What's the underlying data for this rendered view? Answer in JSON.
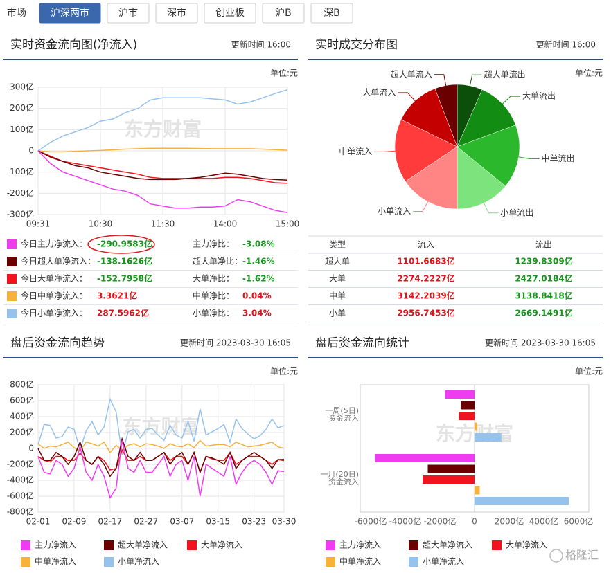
{
  "market": {
    "label": "市场",
    "tabs": [
      "沪深两市",
      "沪市",
      "深市",
      "创业板",
      "沪B",
      "深B"
    ],
    "active": 0,
    "active_color": "#3b67ad"
  },
  "watermark": "东方财富",
  "chart_data": [
    {
      "type": "line",
      "title": "实时资金流向图(净流入)",
      "subtitle": "更新时间 16:00",
      "unit": "单位:元",
      "categories": [
        "09:31",
        null,
        null,
        null,
        null,
        "10:30",
        null,
        null,
        null,
        null,
        "11:30",
        null,
        null,
        null,
        null,
        "14:00",
        null,
        null,
        null,
        null,
        "15:00"
      ],
      "series": [
        {
          "name": "主力净流入",
          "color": "#f03cf0",
          "values": [
            0,
            -60,
            -100,
            -120,
            -140,
            -160,
            -180,
            -190,
            -210,
            -250,
            -260,
            -270,
            -270,
            -265,
            -265,
            -260,
            -230,
            -240,
            -260,
            -280,
            -291
          ]
        },
        {
          "name": "超大单净流入",
          "color": "#6b0000",
          "values": [
            0,
            -30,
            -50,
            -70,
            -80,
            -100,
            -110,
            -120,
            -130,
            -135,
            -135,
            -135,
            -130,
            -125,
            -115,
            -105,
            -110,
            -120,
            -130,
            -135,
            -138
          ]
        },
        {
          "name": "大单净流入",
          "color": "#f0141e",
          "values": [
            0,
            -25,
            -50,
            -60,
            -70,
            -80,
            -90,
            -100,
            -110,
            -125,
            -130,
            -130,
            -130,
            -130,
            -130,
            -125,
            -125,
            -130,
            -140,
            -150,
            -153
          ]
        },
        {
          "name": "中单净流入",
          "color": "#f7b23b",
          "values": [
            0,
            -5,
            -5,
            -2,
            0,
            2,
            5,
            8,
            10,
            12,
            12,
            12,
            12,
            11,
            10,
            10,
            10,
            10,
            8,
            6,
            3
          ]
        },
        {
          "name": "小单净流入",
          "color": "#96c3ec",
          "values": [
            0,
            40,
            70,
            90,
            110,
            140,
            150,
            180,
            200,
            240,
            250,
            250,
            250,
            250,
            245,
            240,
            220,
            230,
            250,
            270,
            288
          ]
        }
      ],
      "ylim": [
        -300,
        300
      ],
      "yticks": [
        {
          "value": 300,
          "label": "300亿"
        },
        {
          "value": 200,
          "label": "200亿"
        },
        {
          "value": 100,
          "label": "100亿"
        },
        0,
        {
          "value": -100,
          "label": "-100亿"
        },
        {
          "value": -200,
          "label": "-200亿"
        },
        {
          "value": -300,
          "label": "-300亿"
        }
      ],
      "grid": true
    },
    {
      "type": "pie",
      "title": "实时成交分布图",
      "subtitle": "更新时间 16:00",
      "unit": "单位:元",
      "categories": [
        "超大单流出",
        "大单流出",
        "中单流出",
        "小单流出",
        "小单流入",
        "中单流入",
        "大单流入",
        "超大单流入"
      ],
      "values": [
        1239.8309,
        2427.0184,
        3138.8418,
        2669.1491,
        2956.7453,
        3142.2039,
        2274.2227,
        1101.6683
      ],
      "colors": [
        "#0b4f0b",
        "#138c13",
        "#2cb82c",
        "#7de47d",
        "#ff8585",
        "#ff3b3b",
        "#c40000",
        "#6b0000"
      ]
    },
    {
      "type": "line",
      "title": "盘后资金流向趋势",
      "subtitle": "更新时间 2023-03-30 16:05",
      "unit": "单位:元",
      "categories": [
        "02-01",
        null,
        null,
        null,
        null,
        null,
        "02-09",
        null,
        null,
        null,
        null,
        null,
        "02-17",
        null,
        null,
        null,
        null,
        null,
        "02-27",
        null,
        null,
        null,
        null,
        null,
        "03-07",
        null,
        null,
        null,
        null,
        null,
        "03-15",
        null,
        null,
        null,
        null,
        null,
        "03-23",
        null,
        null,
        null,
        null,
        "03-30"
      ],
      "series": [
        {
          "name": "主力净流入",
          "color": "#f03cf0",
          "values": [
            -100,
            -300,
            -320,
            -150,
            -200,
            -350,
            -250,
            20,
            -300,
            -400,
            -200,
            -350,
            -620,
            -500,
            100,
            -250,
            -300,
            -150,
            -300,
            -300,
            -200,
            -100,
            -350,
            -200,
            -150,
            -400,
            -100,
            -600,
            -200,
            -250,
            -300,
            -350,
            -100,
            -450,
            -300,
            -200,
            -150,
            -200,
            -300,
            -450,
            -280,
            -291
          ]
        },
        {
          "name": "超大单净流入",
          "color": "#6b0000",
          "values": [
            0,
            -150,
            -150,
            -50,
            -100,
            -200,
            -100,
            80,
            -150,
            -200,
            -100,
            -200,
            -350,
            -250,
            120,
            -100,
            -150,
            -50,
            -150,
            -150,
            -100,
            -50,
            -200,
            -100,
            -50,
            -200,
            -50,
            -300,
            -100,
            -120,
            -150,
            -200,
            -50,
            -250,
            -150,
            -100,
            -50,
            -100,
            -150,
            -250,
            -140,
            -138
          ]
        },
        {
          "name": "大单净流入",
          "color": "#f0141e",
          "values": [
            -100,
            -150,
            -170,
            -100,
            -100,
            -150,
            -150,
            -60,
            -150,
            -200,
            -100,
            -150,
            -270,
            -250,
            -20,
            -150,
            -150,
            -100,
            -150,
            -150,
            -100,
            -50,
            -150,
            -100,
            -100,
            -200,
            -50,
            -300,
            -100,
            -130,
            -150,
            -150,
            -50,
            -200,
            -150,
            -100,
            -100,
            -100,
            -150,
            -200,
            -140,
            -153
          ]
        },
        {
          "name": "中单净流入",
          "color": "#f7b23b",
          "values": [
            60,
            0,
            30,
            20,
            50,
            80,
            10,
            -30,
            80,
            60,
            30,
            80,
            -50,
            40,
            -20,
            40,
            60,
            20,
            60,
            50,
            30,
            0,
            60,
            30,
            20,
            60,
            10,
            100,
            30,
            40,
            50,
            50,
            20,
            80,
            50,
            20,
            30,
            40,
            60,
            80,
            20,
            3
          ]
        },
        {
          "name": "小单净流入",
          "color": "#96c3ec",
          "values": [
            50,
            300,
            290,
            130,
            150,
            270,
            240,
            -20,
            220,
            340,
            170,
            270,
            620,
            460,
            -80,
            210,
            240,
            130,
            240,
            250,
            170,
            100,
            290,
            170,
            130,
            340,
            90,
            500,
            170,
            210,
            250,
            300,
            80,
            370,
            250,
            180,
            120,
            160,
            240,
            370,
            260,
            288
          ]
        }
      ],
      "ylim": [
        -800,
        800
      ],
      "yticks": [
        {
          "value": 800,
          "label": "800亿"
        },
        {
          "value": 600,
          "label": "600亿"
        },
        {
          "value": 400,
          "label": "400亿"
        },
        {
          "value": 200,
          "label": "200亿"
        },
        0,
        {
          "value": -200,
          "label": "-200亿"
        },
        {
          "value": -400,
          "label": "-400亿"
        },
        {
          "value": -600,
          "label": "-600亿"
        },
        {
          "value": -800,
          "label": "-800亿"
        }
      ],
      "grid": true
    },
    {
      "type": "hbar",
      "title": "盘后资金流向统计",
      "subtitle": "更新时间 2023-03-30 16:05",
      "unit": "单位:元",
      "categories": [
        [
          "一周(5日)",
          "资金流入"
        ],
        [
          "一月(20日)",
          "资金流入"
        ]
      ],
      "series": [
        {
          "name": "主力净流入",
          "color": "#f03cf0",
          "values": [
            -1700,
            -5750
          ]
        },
        {
          "name": "超大单净流入",
          "color": "#6b0000",
          "values": [
            -800,
            -2700
          ]
        },
        {
          "name": "大单净流入",
          "color": "#f0141e",
          "values": [
            -900,
            -3000
          ]
        },
        {
          "name": "中单净流入",
          "color": "#f7b23b",
          "values": [
            150,
            300
          ]
        },
        {
          "name": "小单净流入",
          "color": "#96c3ec",
          "values": [
            1550,
            5450
          ]
        }
      ],
      "xlim": [
        -6600,
        6600
      ],
      "xticks": [
        {
          "value": -6000,
          "label": "-6000亿"
        },
        {
          "value": -4000,
          "label": "-4000亿"
        },
        {
          "value": -2000,
          "label": "-2000亿"
        },
        0,
        {
          "value": 2000,
          "label": "2000亿"
        },
        {
          "value": 4000,
          "label": "4000亿"
        },
        {
          "value": 6000,
          "label": "6000亿"
        }
      ]
    }
  ],
  "summary": [
    {
      "label": "今日主力净流入：",
      "value": "-290.9583亿",
      "value_color": "#16961c",
      "ratio_label": "主力净比：",
      "ratio": "-3.08%"
    },
    {
      "label": "今日超大单净流入：",
      "value": "-138.1626亿",
      "value_color": "#16961c",
      "ratio_label": "超大单净比：",
      "ratio": "-1.46%"
    },
    {
      "label": "今日大单净流入：",
      "value": "-152.7958亿",
      "value_color": "#16961c",
      "ratio_label": "大单净比：",
      "ratio": "-1.62%"
    },
    {
      "label": "今日中单净流入：",
      "value": "3.3621亿",
      "value_color": "#e0151b",
      "ratio_label": "中单净比：",
      "ratio": "0.04%"
    },
    {
      "label": "今日小单净流入：",
      "value": "287.5962亿",
      "value_color": "#e0151b",
      "ratio_label": "小单净比：",
      "ratio": "3.04%"
    }
  ],
  "table": {
    "header": [
      "类型",
      "流入",
      "流出"
    ],
    "rows": [
      [
        "超大单",
        "1101.6683亿",
        "1239.8309亿"
      ],
      [
        "大单",
        "2274.2227亿",
        "2427.0184亿"
      ],
      [
        "中单",
        "3142.2039亿",
        "3138.8418亿"
      ],
      [
        "小单",
        "2956.7453亿",
        "2669.1491亿"
      ]
    ],
    "in_color": "#e0151b",
    "out_color": "#16961c"
  },
  "footer": "格隆汇"
}
